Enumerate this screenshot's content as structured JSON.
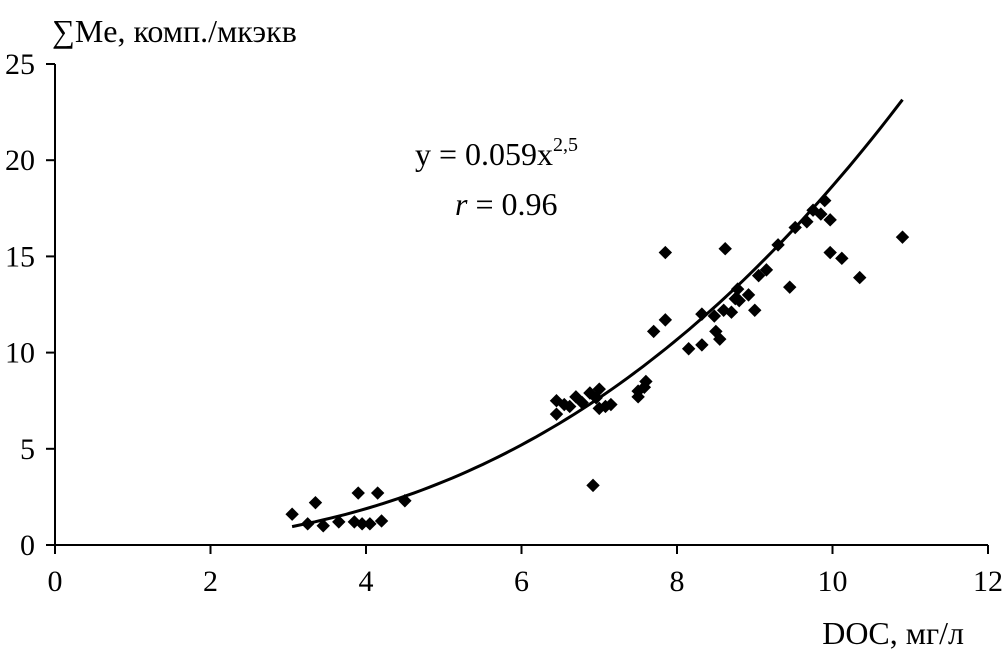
{
  "chart_data": {
    "type": "scatter",
    "title": "",
    "ylabel": "∑Me, комп./мкэкв",
    "xlabel": "DOC, мг/л",
    "xlim": [
      0,
      12
    ],
    "ylim": [
      0,
      25
    ],
    "x_ticks": [
      0,
      2,
      4,
      6,
      8,
      10,
      12
    ],
    "y_ticks": [
      0,
      5,
      10,
      15,
      20,
      25
    ],
    "grid": false,
    "legend": "none",
    "annotations": {
      "equation_prefix": "y",
      "equation_eq": " = 0.059x",
      "equation_exp": "2,5",
      "r_prefix": "r",
      "r_value": " = 0.96"
    },
    "fit": {
      "coef": 0.059,
      "exponent": 2.5,
      "x_range": [
        3.05,
        10.9
      ]
    },
    "series": [
      {
        "marker": "diamond",
        "color": "#000000",
        "points": [
          [
            3.05,
            1.6
          ],
          [
            3.25,
            1.1
          ],
          [
            3.35,
            2.2
          ],
          [
            3.45,
            1.0
          ],
          [
            3.65,
            1.2
          ],
          [
            3.85,
            1.2
          ],
          [
            3.9,
            2.7
          ],
          [
            3.95,
            1.1
          ],
          [
            4.05,
            1.1
          ],
          [
            4.15,
            2.7
          ],
          [
            4.2,
            1.25
          ],
          [
            4.5,
            2.3
          ],
          [
            6.45,
            7.5
          ],
          [
            6.45,
            6.8
          ],
          [
            6.55,
            7.3
          ],
          [
            6.62,
            7.2
          ],
          [
            6.7,
            7.7
          ],
          [
            6.78,
            7.4
          ],
          [
            6.88,
            7.9
          ],
          [
            6.92,
            3.1
          ],
          [
            6.96,
            7.65
          ],
          [
            7.0,
            7.1
          ],
          [
            7.0,
            8.1
          ],
          [
            7.08,
            7.2
          ],
          [
            7.15,
            7.3
          ],
          [
            7.5,
            7.7
          ],
          [
            7.5,
            8.0
          ],
          [
            7.58,
            8.2
          ],
          [
            7.6,
            8.5
          ],
          [
            7.7,
            11.1
          ],
          [
            7.85,
            11.7
          ],
          [
            7.85,
            15.2
          ],
          [
            8.15,
            10.2
          ],
          [
            8.32,
            12.0
          ],
          [
            8.32,
            10.4
          ],
          [
            8.48,
            11.9
          ],
          [
            8.5,
            11.1
          ],
          [
            8.55,
            10.7
          ],
          [
            8.6,
            12.2
          ],
          [
            8.62,
            15.4
          ],
          [
            8.7,
            12.1
          ],
          [
            8.75,
            12.8
          ],
          [
            8.78,
            13.3
          ],
          [
            8.8,
            12.7
          ],
          [
            8.92,
            13.0
          ],
          [
            9.0,
            12.2
          ],
          [
            9.05,
            14.0
          ],
          [
            9.15,
            14.3
          ],
          [
            9.3,
            15.6
          ],
          [
            9.45,
            13.4
          ],
          [
            9.52,
            16.5
          ],
          [
            9.67,
            16.8
          ],
          [
            9.75,
            17.4
          ],
          [
            9.85,
            17.2
          ],
          [
            9.9,
            17.9
          ],
          [
            9.97,
            16.9
          ],
          [
            9.97,
            15.2
          ],
          [
            10.12,
            14.9
          ],
          [
            10.35,
            13.9
          ],
          [
            10.9,
            16.0
          ]
        ]
      }
    ]
  }
}
